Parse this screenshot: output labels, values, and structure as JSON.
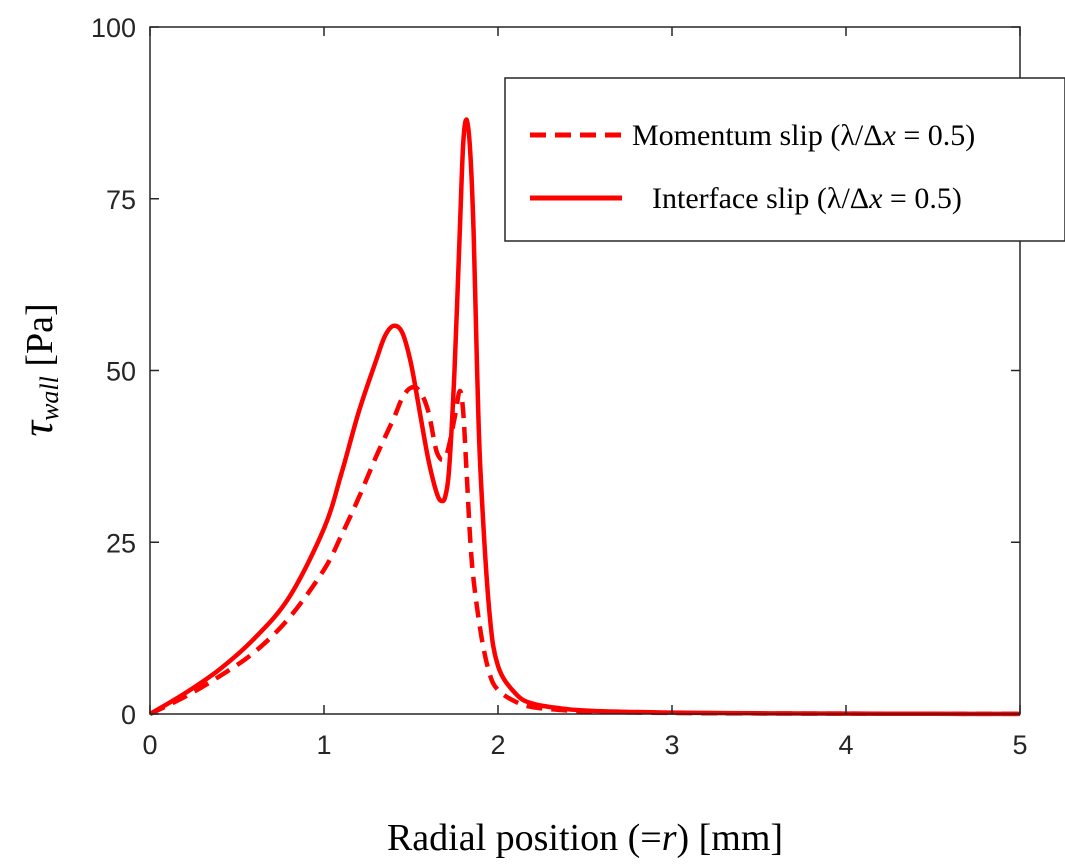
{
  "chart_data": {
    "type": "line",
    "title": "",
    "xlabel": "Radial position (=r) [mm]",
    "xlabel_parts": [
      "Radial position (=",
      "r",
      ") [mm]"
    ],
    "ylabel": "τwall [Pa]",
    "ylabel_parts": [
      "τ",
      "wall",
      " [Pa]"
    ],
    "xlim": [
      0,
      5
    ],
    "ylim": [
      0,
      100
    ],
    "xticks": [
      0,
      1,
      2,
      3,
      4,
      5
    ],
    "yticks": [
      0,
      25,
      50,
      75,
      100
    ],
    "xtick_labels": [
      "0",
      "1",
      "2",
      "3",
      "4",
      "5"
    ],
    "ytick_labels": [
      "0",
      "25",
      "50",
      "75",
      "100"
    ],
    "grid": false,
    "legend_position": "top-right",
    "series": [
      {
        "name": "Momentum slip (λ/Δx = 0.5)",
        "legend_parts": [
          "Momentum slip (λ/Δ",
          "x",
          " = 0.5)"
        ],
        "style": "dashed",
        "color": "#ff0000",
        "x": [
          0,
          0.2,
          0.4,
          0.6,
          0.8,
          1.0,
          1.1,
          1.2,
          1.3,
          1.4,
          1.45,
          1.5,
          1.55,
          1.6,
          1.65,
          1.7,
          1.75,
          1.78,
          1.8,
          1.82,
          1.85,
          1.9,
          1.95,
          2.0,
          2.1,
          2.2,
          2.4,
          2.6,
          3.0,
          3.5,
          4.0,
          4.5,
          5.0
        ],
        "y": [
          0,
          2.5,
          5.5,
          9,
          14,
          21,
          26,
          31.5,
          37.5,
          43,
          46,
          47.5,
          47,
          44,
          38,
          37.5,
          43,
          47,
          44,
          35,
          22,
          12,
          6,
          3.5,
          1.8,
          1.0,
          0.5,
          0.3,
          0.15,
          0.08,
          0.05,
          0.03,
          0.02
        ]
      },
      {
        "name": "Interface slip (λ/Δx = 0.5)",
        "legend_parts": [
          "Interface slip (λ/Δ",
          "x",
          " = 0.5)"
        ],
        "style": "solid",
        "color": "#ff0000",
        "x": [
          0,
          0.2,
          0.4,
          0.6,
          0.8,
          1.0,
          1.1,
          1.2,
          1.3,
          1.35,
          1.4,
          1.45,
          1.5,
          1.55,
          1.6,
          1.65,
          1.68,
          1.7,
          1.72,
          1.75,
          1.78,
          1.8,
          1.82,
          1.84,
          1.86,
          1.88,
          1.9,
          1.95,
          2.0,
          2.1,
          2.2,
          2.4,
          2.6,
          3.0,
          3.5,
          4.0,
          4.5,
          5.0
        ],
        "y": [
          0,
          3,
          6.5,
          11,
          17,
          27,
          35,
          44,
          51.5,
          55,
          56.5,
          55.5,
          51,
          44,
          37,
          32,
          31,
          32,
          36,
          50,
          70,
          83,
          86.5,
          82,
          70,
          50,
          35,
          15,
          7,
          3,
          1.5,
          0.7,
          0.4,
          0.2,
          0.1,
          0.05,
          0.03,
          0.02
        ]
      }
    ]
  }
}
